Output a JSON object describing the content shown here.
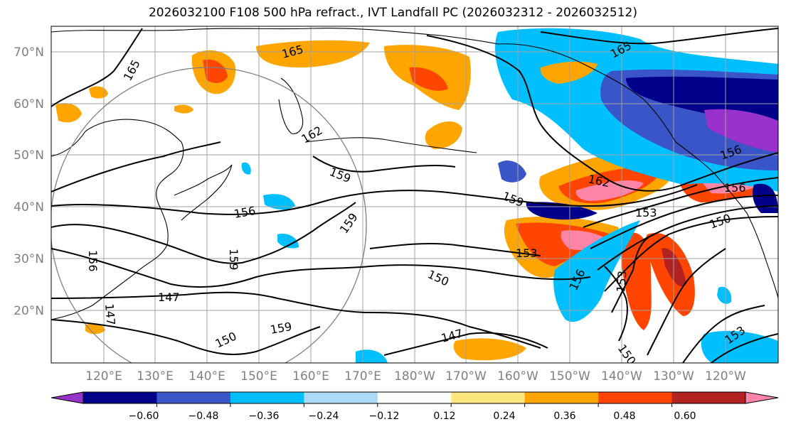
{
  "title": "2026032100 F108 500 hPa refract., IVT Landfall PC (2026032312 - 2026032512)",
  "axes": {
    "lat_labels": [
      "70°N",
      "60°N",
      "50°N",
      "40°N",
      "30°N",
      "20°N"
    ],
    "lon_labels": [
      "120°E",
      "130°E",
      "140°E",
      "150°E",
      "160°E",
      "170°E",
      "180°W",
      "170°W",
      "160°W",
      "150°W",
      "140°W",
      "130°W",
      "120°W"
    ]
  },
  "contour_labels": [
    "165",
    "165",
    "165",
    "162",
    "162",
    "159",
    "159",
    "159",
    "159",
    "156",
    "156",
    "156",
    "156",
    "156",
    "153",
    "153",
    "153",
    "153",
    "150",
    "150",
    "150",
    "150",
    "147",
    "147",
    "147",
    "159"
  ],
  "colorbar": {
    "ticks": [
      "−0.60",
      "−0.48",
      "−0.36",
      "−0.24",
      "−0.12",
      "0.12",
      "0.24",
      "0.36",
      "0.48",
      "0.60"
    ],
    "colors": [
      "#9932cc",
      "#00008b",
      "#3a55c8",
      "#00bfff",
      "#add8f6",
      "#ffffff",
      "#ffe680",
      "#ffa500",
      "#ff4500",
      "#b22222",
      "#ff85a8"
    ],
    "outline": "#000000"
  },
  "colors": {
    "grid": "#a0a0a0",
    "coast": "#000000",
    "circle": "#808080",
    "contour": "#000000"
  }
}
